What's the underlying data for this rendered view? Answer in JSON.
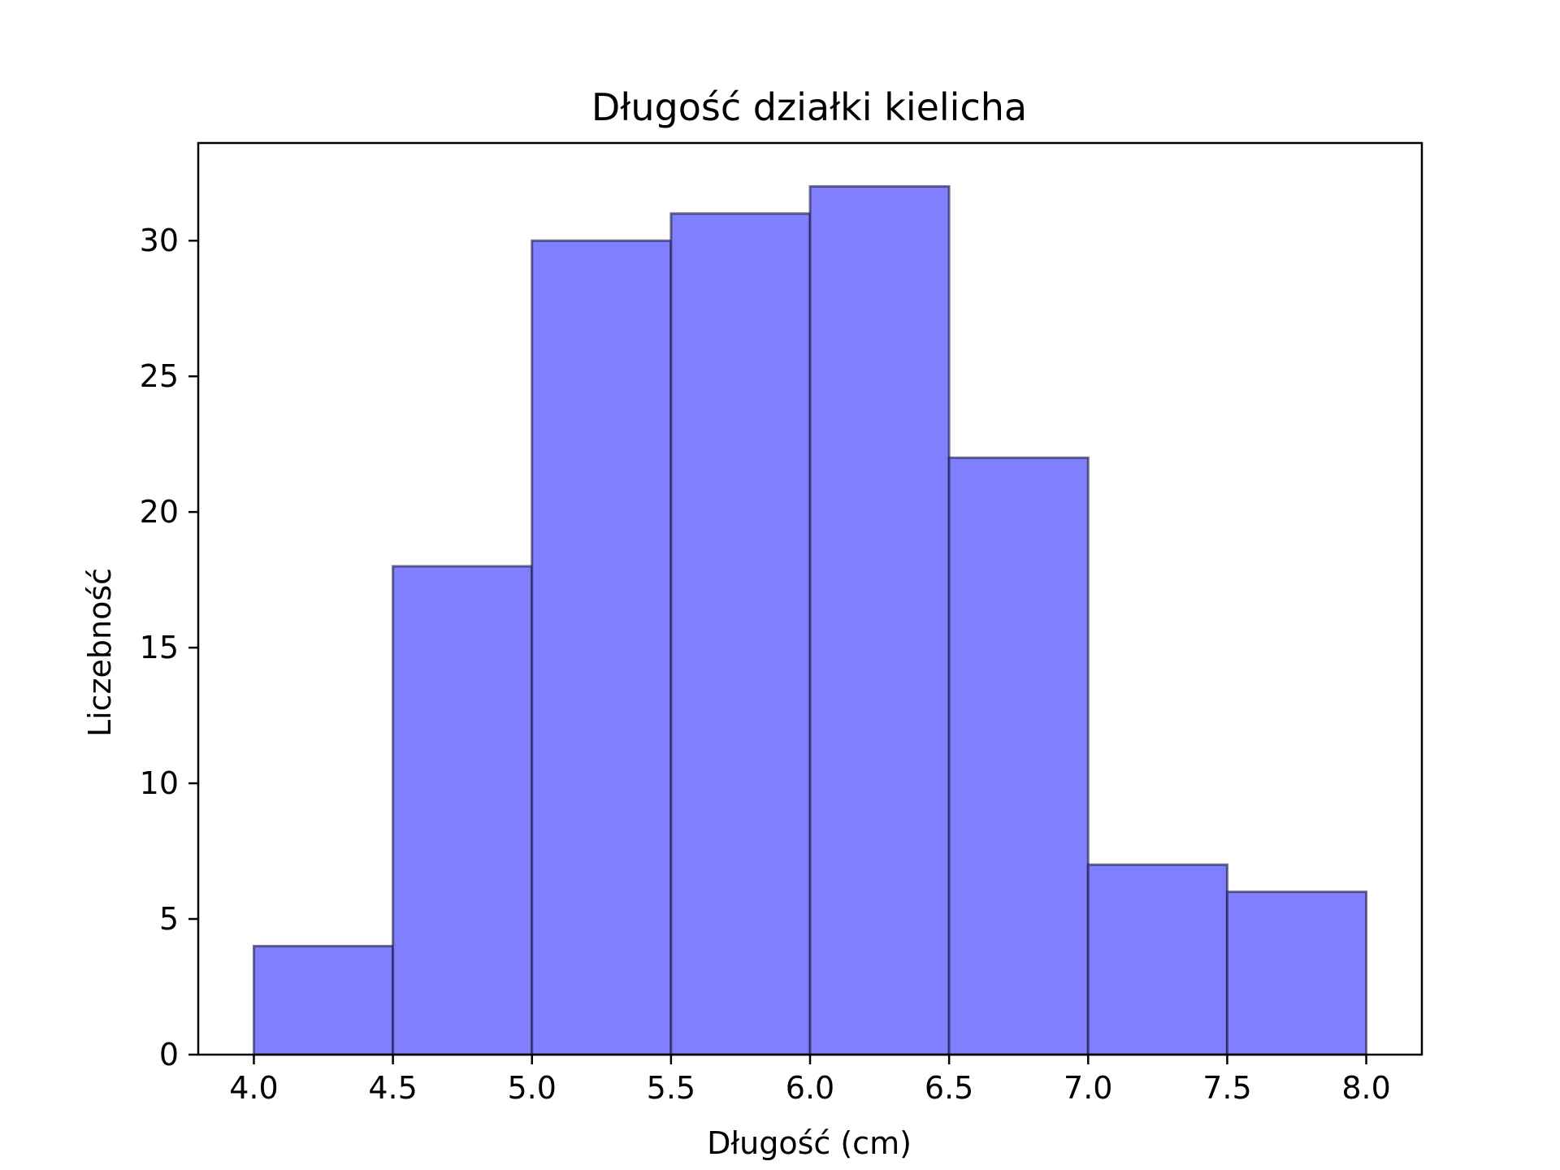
{
  "chart_data": {
    "type": "bar",
    "title": "Długość działki kielicha",
    "xlabel": "Długość (cm)",
    "ylabel": "Liczebność",
    "bins": [
      {
        "start": 4.0,
        "end": 4.5,
        "count": 4
      },
      {
        "start": 4.5,
        "end": 5.0,
        "count": 18
      },
      {
        "start": 5.0,
        "end": 5.5,
        "count": 30
      },
      {
        "start": 5.5,
        "end": 6.0,
        "count": 31
      },
      {
        "start": 6.0,
        "end": 6.5,
        "count": 32
      },
      {
        "start": 6.5,
        "end": 7.0,
        "count": 22
      },
      {
        "start": 7.0,
        "end": 7.5,
        "count": 7
      },
      {
        "start": 7.5,
        "end": 8.0,
        "count": 6
      }
    ],
    "xlim": [
      3.8,
      8.2
    ],
    "ylim": [
      0,
      33.6
    ],
    "xticks": [
      "4.0",
      "4.5",
      "5.0",
      "5.5",
      "6.0",
      "6.5",
      "7.0",
      "7.5",
      "8.0"
    ],
    "yticks": [
      "0",
      "5",
      "10",
      "15",
      "20",
      "25",
      "30"
    ],
    "grid": false,
    "legend": "none",
    "colors": {
      "bar_fill": "#8080ff",
      "bar_edge": "#1a1a3a",
      "axes": "#000000"
    }
  }
}
